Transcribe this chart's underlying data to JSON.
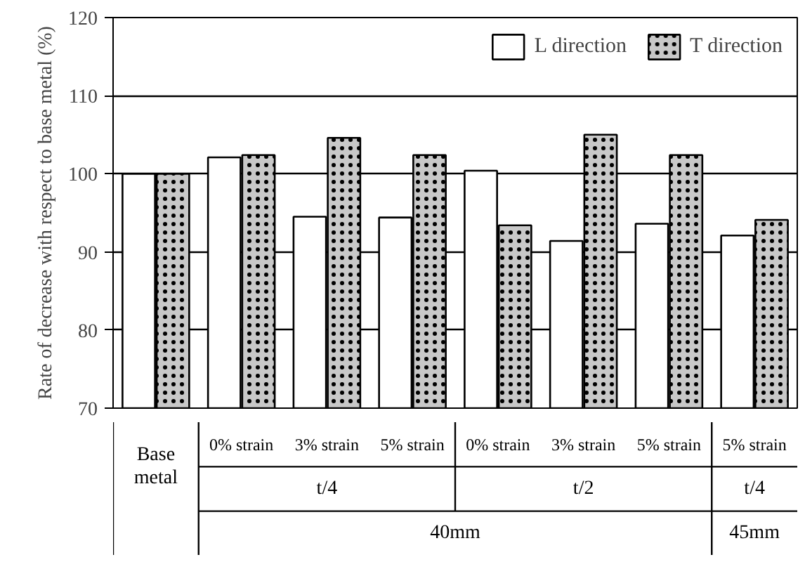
{
  "chart_data": {
    "type": "bar",
    "ylabel": "Rate of decrease with respect to base metal (%)",
    "categories": [
      "Base metal",
      "0% strain",
      "3% strain",
      "5% strain",
      "0% strain",
      "3% strain",
      "5% strain",
      "5% strain"
    ],
    "series": [
      {
        "name": "L direction",
        "color": "#ffffff",
        "values": [
          100,
          102.1,
          94.5,
          94.4,
          100.4,
          91.4,
          93.6,
          92.1
        ]
      },
      {
        "name": "T direction",
        "color": "#c8c8c8",
        "values": [
          100,
          102.4,
          104.6,
          102.4,
          93.4,
          105,
          102.4,
          94.1
        ]
      }
    ],
    "ylim": [
      70,
      120
    ],
    "yticks": [
      70,
      80,
      90,
      100,
      110,
      120
    ],
    "grid": "y",
    "legend": "top right",
    "annotations": [
      "t/4",
      "t/2",
      "t/4",
      "40mm",
      "45mm"
    ]
  }
}
